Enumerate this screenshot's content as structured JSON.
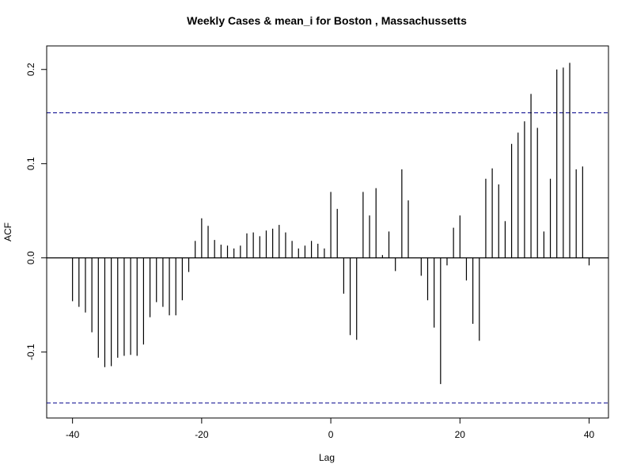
{
  "chart_data": {
    "type": "bar",
    "title": "Weekly Cases & mean_i for Boston , Massachussetts",
    "xlabel": "Lag",
    "ylabel": "ACF",
    "xlim": [
      -44,
      43
    ],
    "ylim": [
      -0.17,
      0.225
    ],
    "x_ticks": [
      "-40",
      "-20",
      "0",
      "20",
      "40"
    ],
    "x_tick_values": [
      -40,
      -20,
      0,
      20,
      40
    ],
    "y_ticks": [
      "-0.1",
      "0.0",
      "0.1",
      "0.2"
    ],
    "y_tick_values": [
      -0.1,
      0.0,
      0.1,
      0.2
    ],
    "confidence_band": [
      -0.154,
      0.154
    ],
    "confidence_color": "#00008b",
    "grid": false,
    "series": [
      {
        "x": [
          -40,
          -39,
          -38,
          -37,
          -36,
          -35,
          -34,
          -33,
          -32,
          -31,
          -30,
          -29,
          -28,
          -27,
          -26,
          -25,
          -24,
          -23,
          -22,
          -21,
          -20,
          -19,
          -18,
          -17,
          -16,
          -15,
          -14,
          -13,
          -12,
          -11,
          -10,
          -9,
          -8,
          -7,
          -6,
          -5,
          -4,
          -3,
          -2,
          -1,
          0,
          1,
          2,
          3,
          4,
          5,
          6,
          7,
          8,
          9,
          10,
          11,
          12,
          13,
          14,
          15,
          16,
          17,
          18,
          19,
          20,
          21,
          22,
          23,
          24,
          25,
          26,
          27,
          28,
          29,
          30,
          31,
          32,
          33,
          34,
          35,
          36,
          37,
          38,
          39,
          40
        ],
        "values": [
          -0.046,
          -0.052,
          -0.058,
          -0.079,
          -0.106,
          -0.116,
          -0.115,
          -0.106,
          -0.104,
          -0.103,
          -0.104,
          -0.092,
          -0.063,
          -0.047,
          -0.052,
          -0.061,
          -0.061,
          -0.045,
          -0.015,
          0.018,
          0.042,
          0.034,
          0.019,
          0.014,
          0.013,
          0.01,
          0.013,
          0.026,
          0.027,
          0.023,
          0.029,
          0.031,
          0.035,
          0.027,
          0.018,
          0.01,
          0.013,
          0.018,
          0.015,
          0.01,
          0.07,
          0.052,
          -0.038,
          -0.082,
          -0.087,
          0.07,
          0.045,
          0.074,
          0.003,
          0.028,
          -0.014,
          0.094,
          0.061,
          0.0,
          -0.019,
          -0.045,
          -0.074,
          -0.134,
          -0.008,
          0.032,
          0.045,
          -0.024,
          -0.07,
          -0.088,
          0.084,
          0.095,
          0.078,
          0.039,
          0.121,
          0.133,
          0.145,
          0.174,
          0.138,
          0.028,
          0.084,
          0.2,
          0.202,
          0.207,
          0.094,
          0.097,
          -0.008
        ]
      }
    ]
  }
}
